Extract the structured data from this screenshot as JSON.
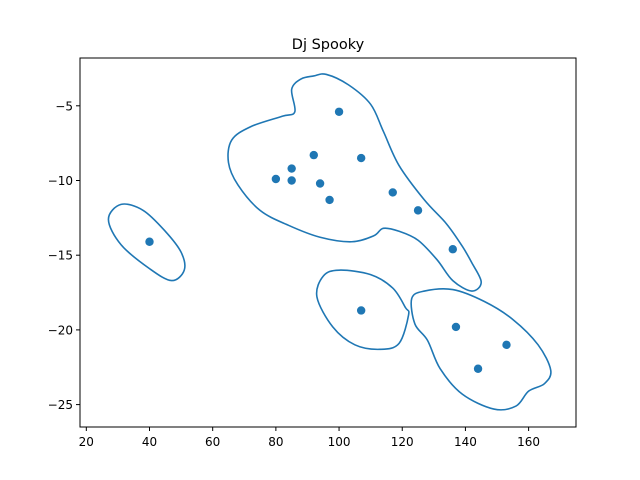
{
  "chart_data": {
    "type": "scatter",
    "title": "Dj Spooky",
    "xlabel": "",
    "ylabel": "",
    "xlim": [
      18,
      175
    ],
    "ylim": [
      -26.5,
      -1.8
    ],
    "xticks": [
      20,
      40,
      60,
      80,
      100,
      120,
      140,
      160
    ],
    "yticks": [
      -5,
      -10,
      -15,
      -20,
      -25
    ],
    "grid": false,
    "colors": {
      "series": "#1f77b4",
      "axis": "#000000"
    },
    "points": [
      {
        "x": 40,
        "y": -14.1
      },
      {
        "x": 80,
        "y": -9.9
      },
      {
        "x": 85,
        "y": -9.2
      },
      {
        "x": 85,
        "y": -10.0
      },
      {
        "x": 92,
        "y": -8.3
      },
      {
        "x": 94,
        "y": -10.2
      },
      {
        "x": 97,
        "y": -11.3
      },
      {
        "x": 100,
        "y": -5.4
      },
      {
        "x": 107,
        "y": -8.5
      },
      {
        "x": 117,
        "y": -10.8
      },
      {
        "x": 125,
        "y": -12.0
      },
      {
        "x": 136,
        "y": -14.6
      },
      {
        "x": 107,
        "y": -18.7
      },
      {
        "x": 137,
        "y": -19.8
      },
      {
        "x": 144,
        "y": -22.6
      },
      {
        "x": 153,
        "y": -21.0
      }
    ],
    "contours": [
      [
        [
          31,
          -11.6
        ],
        [
          38,
          -12.0
        ],
        [
          45,
          -13.4
        ],
        [
          50,
          -14.8
        ],
        [
          51,
          -16.0
        ],
        [
          47,
          -16.7
        ],
        [
          40,
          -15.9
        ],
        [
          31,
          -14.3
        ],
        [
          27,
          -12.6
        ],
        [
          31,
          -11.6
        ]
      ],
      [
        [
          92,
          -3.0
        ],
        [
          96,
          -2.9
        ],
        [
          103,
          -3.6
        ],
        [
          110,
          -4.9
        ],
        [
          114,
          -6.7
        ],
        [
          119,
          -9.0
        ],
        [
          127,
          -11.3
        ],
        [
          134,
          -12.9
        ],
        [
          139,
          -14.4
        ],
        [
          142,
          -15.5
        ],
        [
          145,
          -16.8
        ],
        [
          142,
          -17.4
        ],
        [
          136,
          -16.7
        ],
        [
          131,
          -15.3
        ],
        [
          125,
          -14.0
        ],
        [
          119,
          -13.4
        ],
        [
          114,
          -13.2
        ],
        [
          111,
          -13.7
        ],
        [
          104,
          -14.1
        ],
        [
          94,
          -13.8
        ],
        [
          84,
          -13.0
        ],
        [
          75,
          -12.0
        ],
        [
          68,
          -10.3
        ],
        [
          65,
          -8.8
        ],
        [
          66,
          -7.3
        ],
        [
          72,
          -6.4
        ],
        [
          82,
          -5.7
        ],
        [
          86,
          -5.4
        ],
        [
          85,
          -3.9
        ],
        [
          88,
          -3.2
        ],
        [
          92,
          -3.0
        ]
      ],
      [
        [
          100,
          -16.0
        ],
        [
          110,
          -16.3
        ],
        [
          117,
          -17.2
        ],
        [
          121,
          -18.5
        ],
        [
          122,
          -19.0
        ],
        [
          119,
          -20.9
        ],
        [
          113,
          -21.3
        ],
        [
          105,
          -21.0
        ],
        [
          98,
          -19.8
        ],
        [
          93,
          -17.8
        ],
        [
          95,
          -16.4
        ],
        [
          100,
          -16.0
        ]
      ],
      [
        [
          123,
          -17.9
        ],
        [
          127,
          -17.4
        ],
        [
          136,
          -17.3
        ],
        [
          146,
          -18.1
        ],
        [
          155,
          -19.3
        ],
        [
          163,
          -21.0
        ],
        [
          167,
          -22.7
        ],
        [
          165,
          -23.6
        ],
        [
          160,
          -24.1
        ],
        [
          156,
          -25.1
        ],
        [
          149,
          -25.3
        ],
        [
          139,
          -24.3
        ],
        [
          132,
          -22.6
        ],
        [
          128,
          -20.7
        ],
        [
          124,
          -19.6
        ],
        [
          123,
          -17.9
        ]
      ]
    ]
  }
}
